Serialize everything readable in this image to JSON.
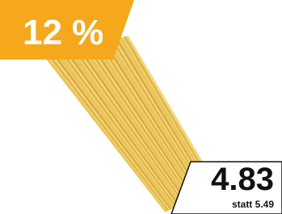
{
  "badge": {
    "discount": "12 %"
  },
  "price": {
    "current": "4.83",
    "previous": "statt 5.49"
  }
}
